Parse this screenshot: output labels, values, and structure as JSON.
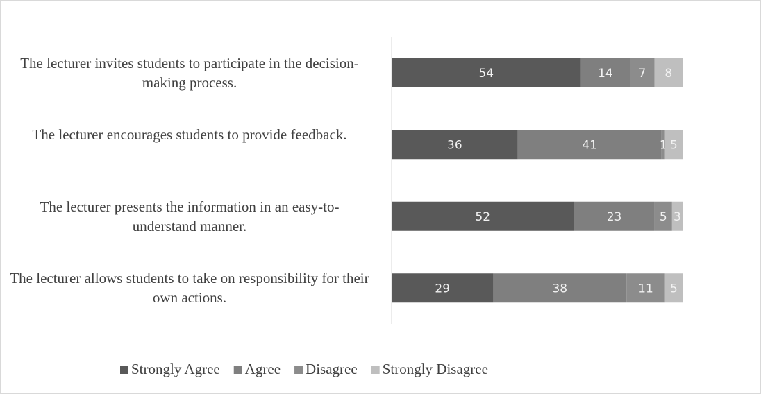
{
  "chart_data": {
    "type": "stacked-barh",
    "categories": [
      "The lecturer invites students to participate in the decision-making process.",
      "The lecturer encourages students to provide feedback.",
      "The lecturer presents the information in an easy-to-understand manner.",
      "The lecturer allows students to take on responsibility for their own actions."
    ],
    "series": [
      {
        "name": "Strongly Agree",
        "color": "#595959",
        "values": [
          54,
          36,
          52,
          29
        ]
      },
      {
        "name": "Agree",
        "color": "#7f7f7f",
        "values": [
          14,
          41,
          23,
          38
        ]
      },
      {
        "name": "Disagree",
        "color": "#8c8c8c",
        "values": [
          7,
          1,
          5,
          11
        ]
      },
      {
        "name": "Strongly Disagree",
        "color": "#bfbfbf",
        "values": [
          8,
          5,
          3,
          5
        ]
      }
    ],
    "xlim": [
      0,
      83
    ],
    "legend": "bottom"
  }
}
